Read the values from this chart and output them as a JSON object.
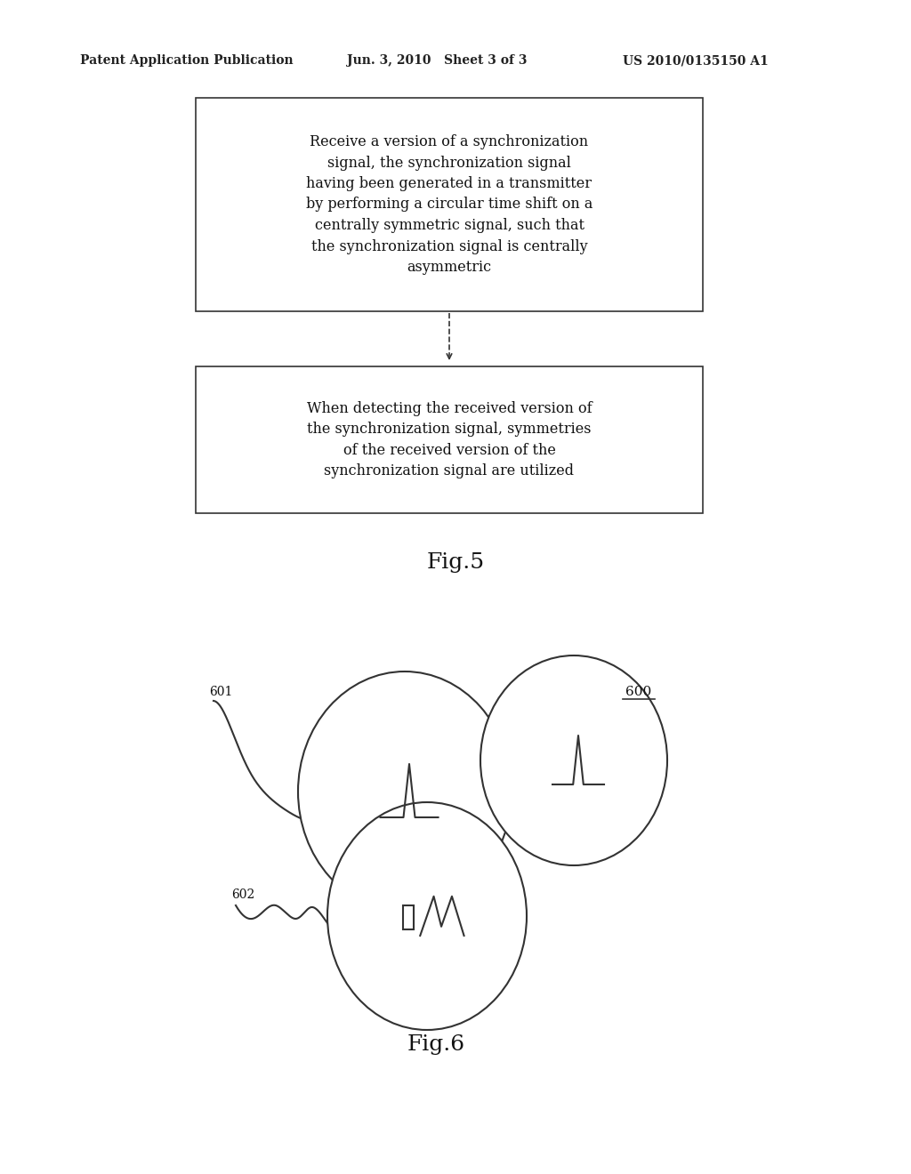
{
  "bg_color": "#ffffff",
  "header_left": "Patent Application Publication",
  "header_mid": "Jun. 3, 2010   Sheet 3 of 3",
  "header_right": "US 2010/0135150 A1",
  "box1_text": "Receive a version of a synchronization\nsignal, the synchronization signal\nhaving been generated in a transmitter\nby performing a circular time shift on a\ncentrally symmetric signal, such that\nthe synchronization signal is centrally\nasymmetric",
  "box2_text": "When detecting the received version of\nthe synchronization signal, symmetries\nof the received version of the\nsynchronization signal are utilized",
  "fig5_label": "Fig.5",
  "fig6_label": "Fig.6",
  "label_600": "600",
  "label_601": "601",
  "label_602": "602"
}
